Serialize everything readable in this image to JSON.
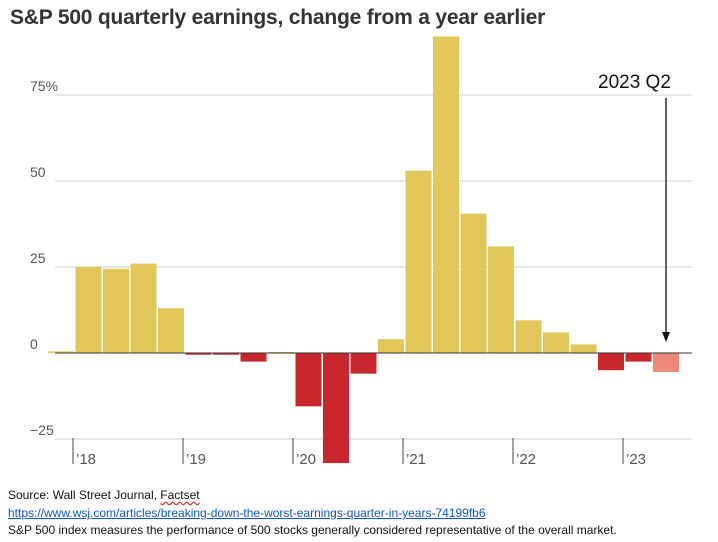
{
  "chart_data": {
    "type": "bar",
    "title": "S&P 500 quarterly earnings, change from a year earlier",
    "xlabel": "",
    "ylabel": "",
    "ylim": [
      -33,
      92
    ],
    "yticks": [
      {
        "value": 75,
        "label": "75%"
      },
      {
        "value": 50,
        "label": "50"
      },
      {
        "value": 25,
        "label": "25"
      },
      {
        "value": 0,
        "label": "0"
      },
      {
        "value": -25,
        "label": "−25"
      }
    ],
    "year_labels": [
      {
        "label": "’18",
        "start_index": 0
      },
      {
        "label": "’19",
        "start_index": 4
      },
      {
        "label": "’20",
        "start_index": 8
      },
      {
        "label": "’21",
        "start_index": 12
      },
      {
        "label": "’22",
        "start_index": 16
      },
      {
        "label": "’23",
        "start_index": 20
      }
    ],
    "categories": [
      "2017 Q4",
      "2018 Q1",
      "2018 Q2",
      "2018 Q3",
      "2018 Q4",
      "2019 Q1",
      "2019 Q2",
      "2019 Q3",
      "2019 Q4",
      "2020 Q1",
      "2020 Q2",
      "2020 Q3",
      "2020 Q4",
      "2021 Q1",
      "2021 Q2",
      "2021 Q3",
      "2021 Q4",
      "2022 Q1",
      "2022 Q2",
      "2022 Q3",
      "2022 Q4",
      "2023 Q1",
      "2023 Q2"
    ],
    "values": [
      0.5,
      25,
      24.5,
      26,
      13,
      -0.5,
      -0.5,
      -2.5,
      0.3,
      -15.5,
      -32,
      -6,
      4,
      53,
      92,
      40.5,
      31,
      9.5,
      6,
      2.5,
      -5,
      -2.5,
      -5.5
    ],
    "colors": {
      "positive": "#e1c65a",
      "negative": "#c9262e",
      "highlight": "#ee8877",
      "zero_line": "#333333",
      "grid": "#cfcfcf"
    },
    "highlight_index": 22
  },
  "annotation": {
    "text": "2023 Q2"
  },
  "footer": {
    "source_prefix": "Source: Wall Street Journal, ",
    "source_factset": "Factset",
    "link": "https://www.wsj.com/articles/breaking-down-the-worst-earnings-quarter-in-years-74199fb6",
    "note": "S&P 500 index measures the performance of 500 stocks generally considered representative of the overall market."
  }
}
